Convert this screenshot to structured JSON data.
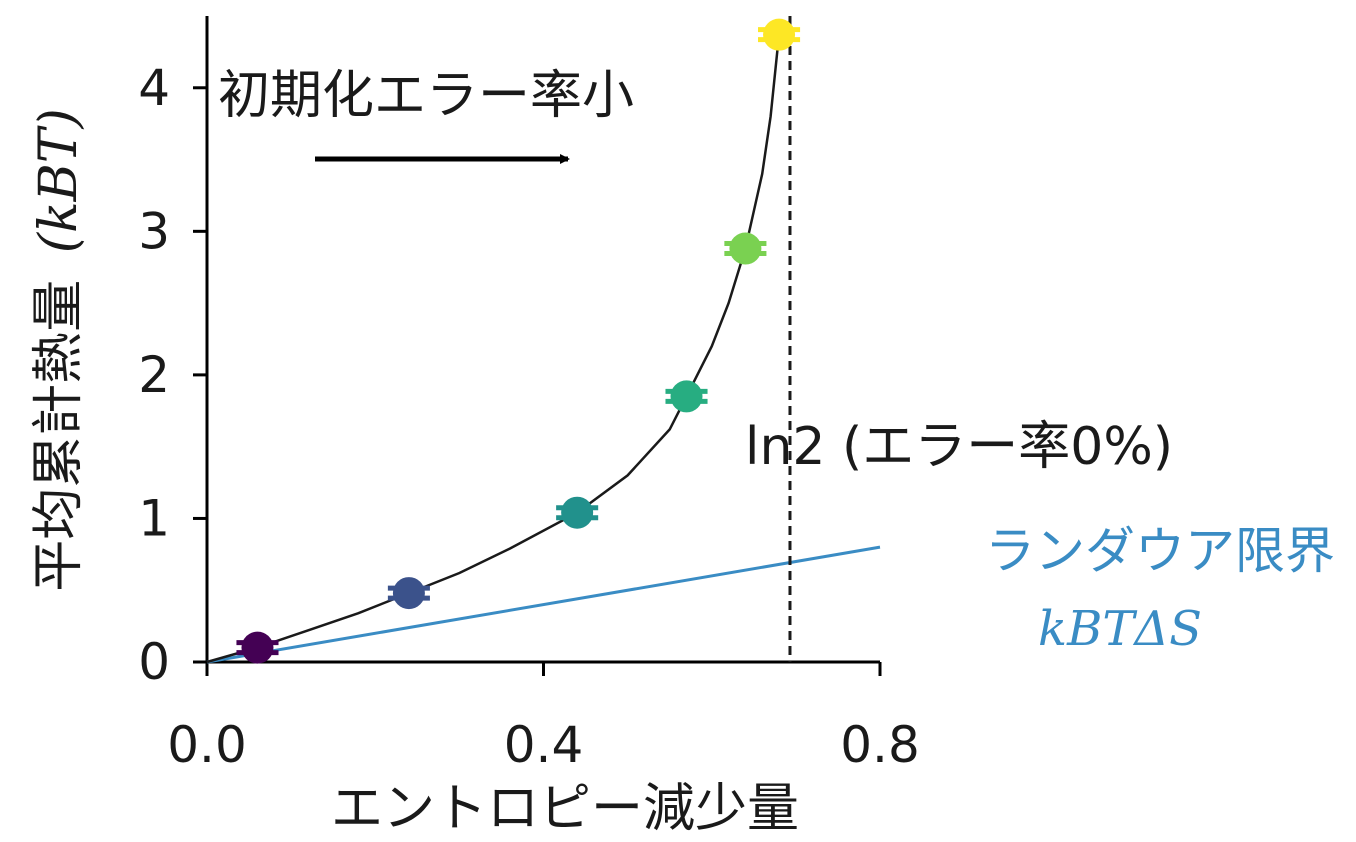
{
  "chart_data": {
    "type": "line",
    "xlabel": "エントロピー減少量",
    "ylabel": "平均累計熱量 (kBT)",
    "ylabel_main": "平均累計熱量",
    "ylabel_unit": "(kBT)",
    "xlim": [
      0.0,
      0.8
    ],
    "ylim": [
      0.0,
      4.5
    ],
    "x_ticks": [
      0.0,
      0.4,
      0.8
    ],
    "x_tick_labels": [
      "0.0",
      "0.4",
      "0.8"
    ],
    "y_ticks": [
      0,
      1,
      2,
      3,
      4
    ],
    "y_tick_labels": [
      "0",
      "1",
      "2",
      "3",
      "4"
    ],
    "grid": false,
    "series": [
      {
        "kind": "points",
        "x": [
          0.06,
          0.24,
          0.44,
          0.57,
          0.64,
          0.68
        ],
        "y": [
          0.1,
          0.48,
          1.04,
          1.85,
          2.88,
          4.37
        ],
        "x_err": [
          0.025,
          0.025,
          0.025,
          0.025,
          0.025,
          0.025
        ],
        "colors": [
          "#440154",
          "#3b528b",
          "#21918c",
          "#27ad81",
          "#7ad151",
          "#fde725"
        ]
      },
      {
        "kind": "curve",
        "color": "#1a1a1a",
        "x": [
          0.0,
          0.06,
          0.12,
          0.18,
          0.24,
          0.3,
          0.36,
          0.44,
          0.5,
          0.55,
          0.57,
          0.6,
          0.62,
          0.64,
          0.66,
          0.67,
          0.68,
          0.685
        ],
        "y": [
          0.0,
          0.1,
          0.22,
          0.34,
          0.48,
          0.62,
          0.79,
          1.04,
          1.3,
          1.62,
          1.85,
          2.2,
          2.5,
          2.88,
          3.4,
          3.8,
          4.37,
          4.47
        ]
      },
      {
        "kind": "line",
        "name": "ランダウア限界",
        "color": "#3a8cc4",
        "x": [
          0.0,
          0.8
        ],
        "y": [
          0.0,
          0.8
        ]
      }
    ],
    "vline": {
      "x": 0.693,
      "style": "dashed",
      "color": "#1a1a1a"
    },
    "annotations": {
      "arrow_text": "初期化エラー率小",
      "ln2_label": "ln2 (エラー率0%)",
      "landauer_label": "ランダウア限界",
      "landauer_formula": "kBTΔS"
    }
  }
}
